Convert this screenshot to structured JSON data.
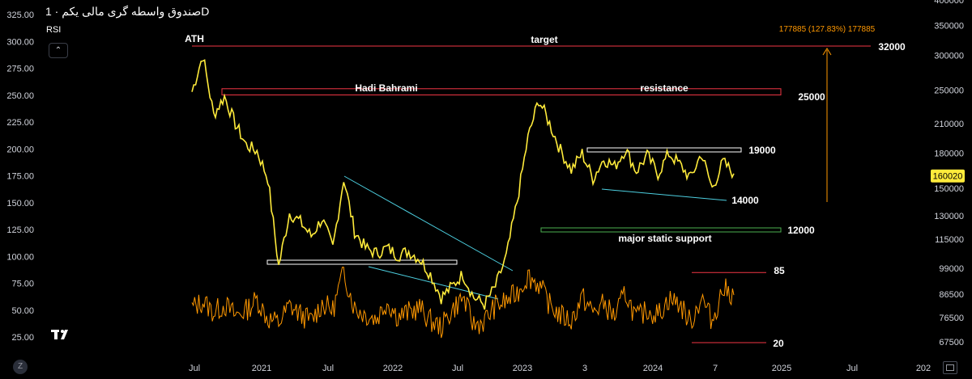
{
  "header": {
    "title": "صندوق واسطه گری مالی یکم · 1D",
    "indicator": "RSI",
    "collapse_icon": "chevron-up-icon",
    "logo": "tradingview-logo-icon"
  },
  "chart_data": [
    {
      "type": "line",
      "name": "price",
      "title": "صندوق واسطه گری مالی یکم · 1D",
      "y_scale": "log",
      "ylim": [
        62000,
        400000
      ],
      "right_axis_ticks": [
        400000,
        350000,
        300000,
        250000,
        210000,
        180000,
        150000,
        130000,
        115000,
        99000,
        86500,
        76500,
        67500
      ],
      "current_price": 160020,
      "x_ticks": [
        "Jul",
        "2021",
        "Jul",
        "2022",
        "Jul",
        "2023",
        "3",
        "2024",
        "7",
        "2025",
        "Jul",
        "202"
      ],
      "x": [
        "2020-07",
        "2020-07",
        "2020-08",
        "2020-09",
        "2020-10",
        "2020-11",
        "2020-12",
        "2021-01",
        "2021-02",
        "2021-03",
        "2021-04",
        "2021-05",
        "2021-06",
        "2021-07",
        "2021-08",
        "2021-09",
        "2021-10",
        "2021-11",
        "2021-12",
        "2022-01",
        "2022-02",
        "2022-03",
        "2022-04",
        "2022-05",
        "2022-06",
        "2022-07",
        "2022-08",
        "2022-09",
        "2022-10",
        "2022-11",
        "2022-12",
        "2023-01",
        "2023-02",
        "2023-03",
        "2023-04",
        "2023-05",
        "2023-06",
        "2023-07",
        "2023-08",
        "2023-09",
        "2023-10",
        "2023-11",
        "2023-12",
        "2024-01",
        "2024-02",
        "2024-03",
        "2024-04",
        "2024-05",
        "2024-06",
        "2024-07",
        "2024-08"
      ],
      "values": [
        248000,
        300000,
        220000,
        242000,
        210000,
        188000,
        182000,
        158000,
        100000,
        132000,
        126000,
        117000,
        128000,
        110000,
        158000,
        120000,
        110000,
        107000,
        110000,
        106000,
        108000,
        104000,
        96000,
        85000,
        90000,
        96000,
        85000,
        82000,
        90000,
        105000,
        140000,
        195000,
        238000,
        210000,
        183000,
        165000,
        180000,
        158000,
        175000,
        168000,
        184000,
        164000,
        178000,
        162000,
        180000,
        170000,
        158000,
        180000,
        150000,
        172000,
        162000
      ]
    },
    {
      "type": "line",
      "name": "RSI",
      "ylim": [
        15,
        330
      ],
      "left_axis_ticks": [
        325,
        300,
        275,
        250,
        225,
        200,
        175,
        150,
        125,
        100,
        75,
        50,
        25
      ],
      "left_axis_labels": [
        "325.00",
        "300.00",
        "275.00",
        "250.00",
        "225.00",
        "200.00",
        "175.00",
        "150.00",
        "125.00",
        "100.00",
        "75.00",
        "50.00",
        "25.00"
      ],
      "levels": [
        85,
        20
      ],
      "values": [
        52,
        58,
        48,
        55,
        45,
        50,
        60,
        42,
        38,
        54,
        46,
        40,
        56,
        50,
        86,
        52,
        46,
        42,
        58,
        44,
        48,
        52,
        40,
        34,
        50,
        62,
        36,
        40,
        54,
        58,
        66,
        82,
        74,
        55,
        45,
        40,
        62,
        48,
        56,
        44,
        66,
        42,
        50,
        46,
        60,
        56,
        38,
        62,
        40,
        70,
        64
      ]
    }
  ],
  "lines": {
    "ath_line": {
      "value": 295000,
      "label": "ATH"
    },
    "target_line": {
      "value": 295000,
      "label": "target",
      "price_label": "32000"
    },
    "resistance": {
      "top": 252000,
      "bottom": 244000,
      "label_left": "Hadi Bahrami",
      "label_right": "resistance",
      "price_label": "25000"
    },
    "range_top": {
      "value": 185000,
      "price_label": "19000"
    },
    "range_bottom": {
      "price_label": "14000"
    },
    "support": {
      "top": 120500,
      "bottom": 118500,
      "label": "major static support",
      "price_label": "12000"
    },
    "low_box": {
      "top": 99500,
      "bottom": 97500
    },
    "rsi_85": "85",
    "rsi_20": "20",
    "measure": "177885 (127.83%) 177885",
    "price_tag": "160020"
  },
  "colors": {
    "price": "#ffeb3b",
    "rsi": "#ff9800",
    "trend": "#4dd0e1",
    "resistance": "#f23645",
    "support": "#4caf50",
    "range": "#ffffff",
    "measure": "#ff9800",
    "axis_text": "#d1d4dc",
    "background": "#000000"
  }
}
